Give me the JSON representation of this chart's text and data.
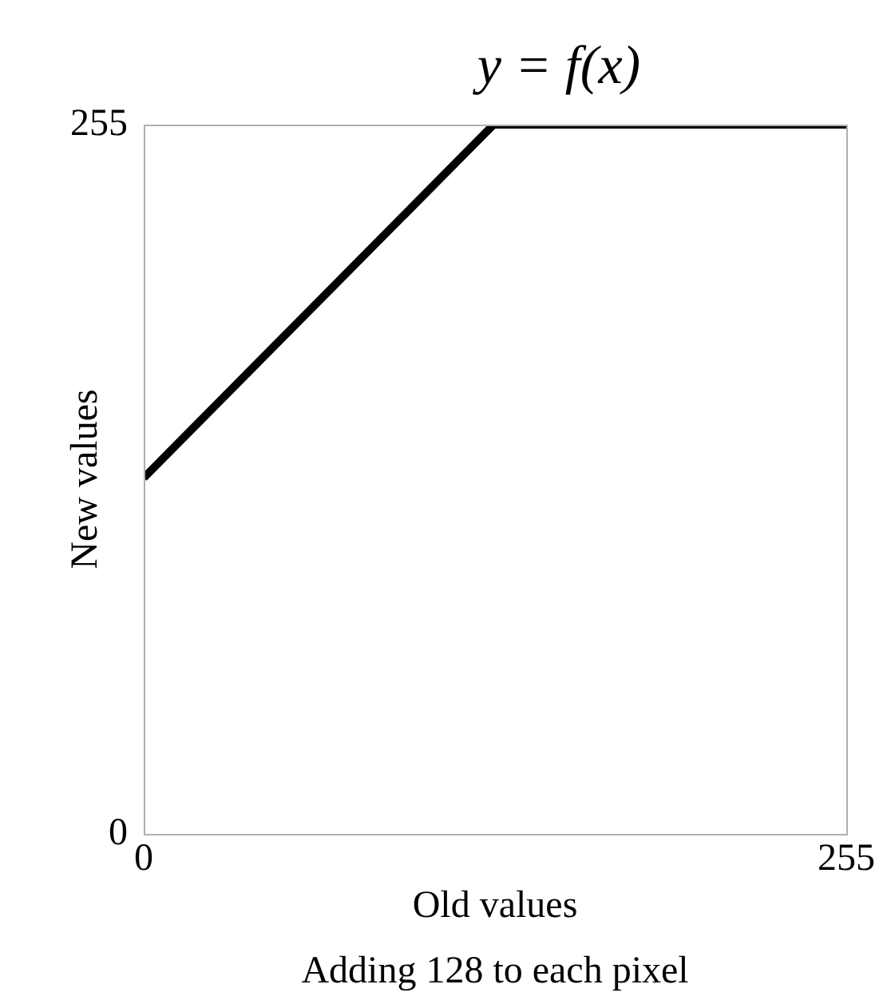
{
  "chart_data": {
    "type": "line",
    "title": "y = f(x)",
    "xlabel": "Old values",
    "ylabel": "New values",
    "annotations": [
      "Adding 128 to each pixel"
    ],
    "x": [
      0,
      127,
      255
    ],
    "values": [
      128,
      255,
      255
    ],
    "color": "#000000",
    "xlim": [
      0,
      255
    ],
    "ylim": [
      0,
      255
    ],
    "xticks": [
      0,
      255
    ],
    "yticks": [
      0,
      255
    ]
  }
}
